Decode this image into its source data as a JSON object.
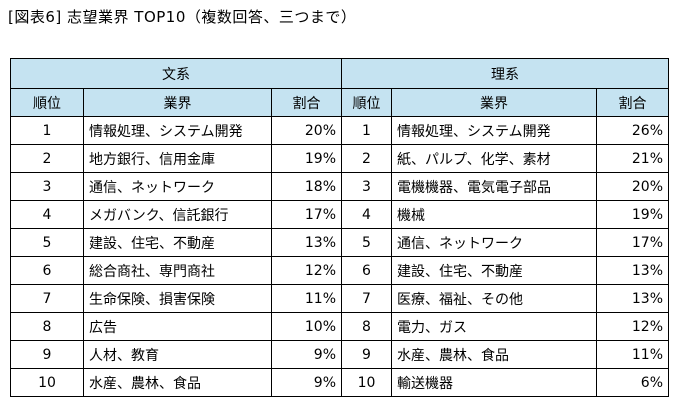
{
  "title": "[図表6] 志望業界 TOP10（複数回答、三つまで）",
  "groups": {
    "humanities": "文系",
    "science": "理系"
  },
  "headers": {
    "rank": "順位",
    "industry": "業界",
    "share": "割合"
  },
  "humanities": [
    {
      "rank": "1",
      "industry": "情報処理、システム開発",
      "share": "20%"
    },
    {
      "rank": "2",
      "industry": "地方銀行、信用金庫",
      "share": "19%"
    },
    {
      "rank": "3",
      "industry": "通信、ネットワーク",
      "share": "18%"
    },
    {
      "rank": "4",
      "industry": "メガバンク、信託銀行",
      "share": "17%"
    },
    {
      "rank": "5",
      "industry": "建設、住宅、不動産",
      "share": "13%"
    },
    {
      "rank": "6",
      "industry": "総合商社、専門商社",
      "share": "12%"
    },
    {
      "rank": "7",
      "industry": "生命保険、損害保険",
      "share": "11%"
    },
    {
      "rank": "8",
      "industry": "広告",
      "share": "10%"
    },
    {
      "rank": "9",
      "industry": "人材、教育",
      "share": "9%"
    },
    {
      "rank": "10",
      "industry": "水産、農林、食品",
      "share": "9%"
    }
  ],
  "science": [
    {
      "rank": "1",
      "industry": "情報処理、システム開発",
      "share": "26%"
    },
    {
      "rank": "2",
      "industry": "紙、パルプ、化学、素材",
      "share": "21%"
    },
    {
      "rank": "3",
      "industry": "電機機器、電気電子部品",
      "share": "20%"
    },
    {
      "rank": "4",
      "industry": "機械",
      "share": "19%"
    },
    {
      "rank": "5",
      "industry": "通信、ネットワーク",
      "share": "17%"
    },
    {
      "rank": "6",
      "industry": "建設、住宅、不動産",
      "share": "13%"
    },
    {
      "rank": "7",
      "industry": "医療、福祉、その他",
      "share": "13%"
    },
    {
      "rank": "8",
      "industry": "電力、ガス",
      "share": "12%"
    },
    {
      "rank": "9",
      "industry": "水産、農林、食品",
      "share": "11%"
    },
    {
      "rank": "10",
      "industry": "輸送機器",
      "share": "6%"
    }
  ]
}
